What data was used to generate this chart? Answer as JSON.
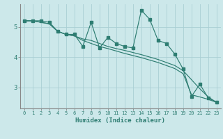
{
  "xlabel": "Humidex (Indice chaleur)",
  "bg_color": "#cce8ea",
  "line_color": "#2e7d72",
  "grid_color": "#aacfd4",
  "x_values": [
    0,
    1,
    2,
    3,
    4,
    5,
    6,
    7,
    8,
    9,
    10,
    11,
    12,
    13,
    14,
    15,
    16,
    17,
    18,
    19,
    20,
    21,
    22,
    23
  ],
  "line1_markers": [
    5.2,
    5.2,
    5.2,
    5.15,
    4.85,
    4.75,
    4.75,
    4.35,
    5.15,
    4.3,
    4.65,
    4.45,
    4.35,
    4.3,
    5.55,
    5.25,
    4.55,
    4.45,
    4.1,
    3.6,
    2.7,
    3.1,
    2.65,
    2.5
  ],
  "line2_smooth": [
    5.2,
    5.2,
    5.15,
    5.1,
    4.85,
    4.75,
    4.7,
    4.6,
    4.55,
    4.45,
    4.35,
    4.28,
    4.22,
    4.15,
    4.08,
    4.0,
    3.92,
    3.82,
    3.72,
    3.55,
    3.25,
    2.95,
    2.68,
    2.5
  ],
  "line3_smooth": [
    5.2,
    5.2,
    5.15,
    5.1,
    4.85,
    4.75,
    4.7,
    4.55,
    4.45,
    4.35,
    4.28,
    4.2,
    4.12,
    4.05,
    3.98,
    3.9,
    3.82,
    3.72,
    3.62,
    3.45,
    2.75,
    2.68,
    2.6,
    2.5
  ],
  "ylim": [
    2.3,
    5.75
  ],
  "xlim": [
    -0.5,
    23.5
  ],
  "yticks": [
    3,
    4,
    5
  ],
  "xticks": [
    0,
    1,
    2,
    3,
    4,
    5,
    6,
    7,
    8,
    9,
    10,
    11,
    12,
    13,
    14,
    15,
    16,
    17,
    18,
    19,
    20,
    21,
    22,
    23
  ]
}
